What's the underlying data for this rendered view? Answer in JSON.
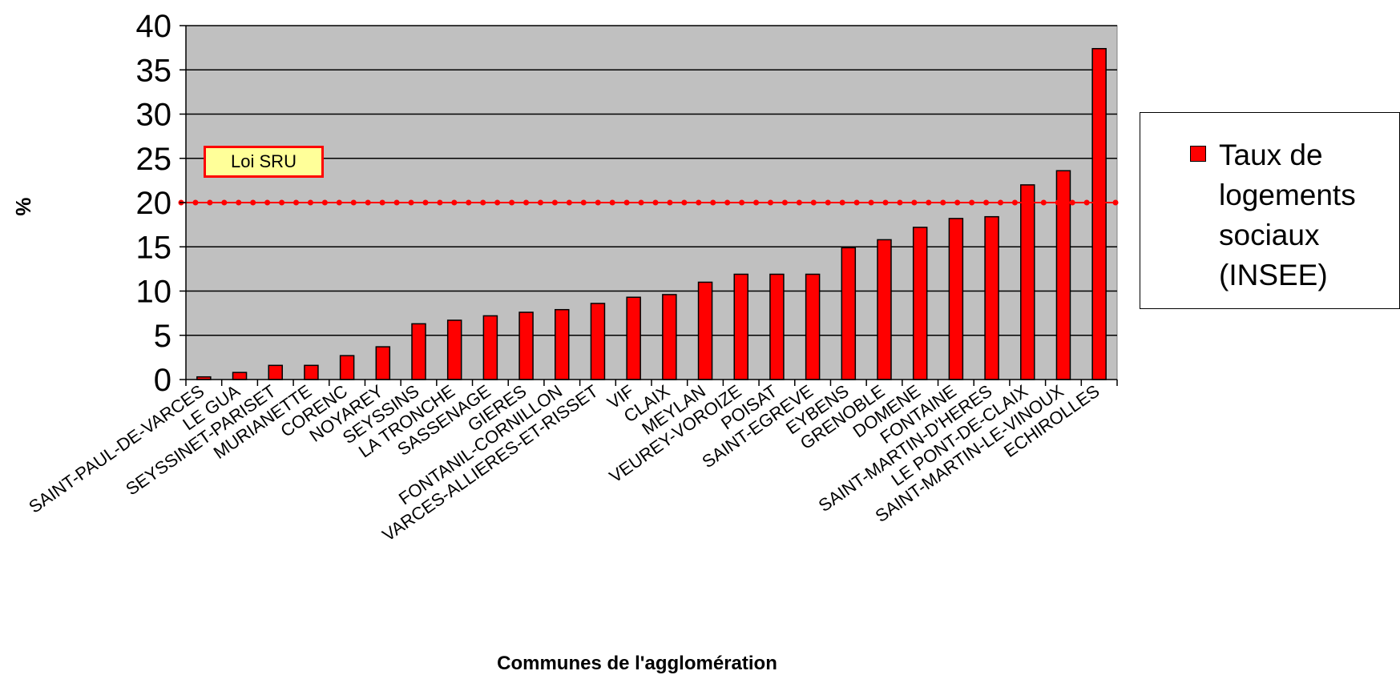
{
  "chart_data": {
    "type": "bar",
    "ylabel": "%",
    "xlabel": "Communes de l'agglomération",
    "ylim": [
      0,
      40
    ],
    "yticks": [
      0,
      5,
      10,
      15,
      20,
      25,
      30,
      35,
      40
    ],
    "grid": true,
    "legend_position": "right",
    "categories": [
      "SAINT-PAUL-DE-VARCES",
      "LE GUA",
      "SEYSSINET-PARISET",
      "MURIANETTE",
      "CORENC",
      "NOYAREY",
      "SEYSSINS",
      "LA TRONCHE",
      "SASSENAGE",
      "GIERES",
      "FONTANIL-CORNILLON",
      "VARCES-ALLIERES-ET-RISSET",
      "VIF",
      "CLAIX",
      "MEYLAN",
      "VEUREY-VOROIZE",
      "POISAT",
      "SAINT-EGREVE",
      "EYBENS",
      "GRENOBLE",
      "DOMENE",
      "FONTAINE",
      "SAINT-MARTIN-D'HERES",
      "LE PONT-DE-CLAIX",
      "SAINT-MARTIN-LE-VINOUX",
      "ECHIROLLES"
    ],
    "series": [
      {
        "name": "Taux de logements sociaux (INSEE)",
        "color": "#ff0000",
        "values": [
          0.3,
          0.8,
          1.6,
          1.6,
          2.7,
          3.7,
          6.3,
          6.7,
          7.2,
          7.6,
          7.9,
          8.6,
          9.3,
          9.6,
          11.0,
          11.9,
          11.9,
          11.9,
          14.9,
          15.8,
          17.2,
          18.2,
          18.4,
          22.0,
          23.6,
          37.4
        ]
      }
    ],
    "reference_line": {
      "value": 20,
      "label": "Loi SRU",
      "color": "#ff0000"
    },
    "plot_background": "#c0c0c0"
  }
}
